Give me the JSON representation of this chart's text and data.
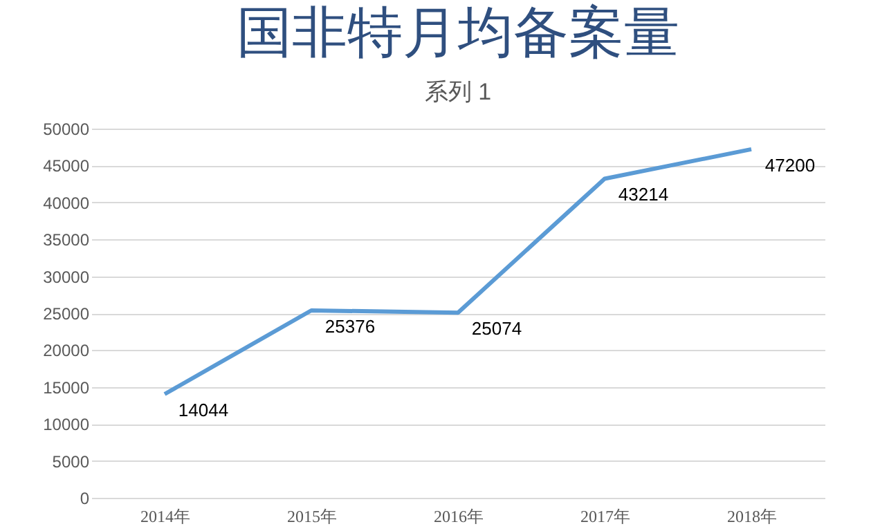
{
  "chart_data": {
    "type": "line",
    "title": "国非特月均备案量",
    "subtitle": "系列 1",
    "categories": [
      "2014年",
      "2015年",
      "2016年",
      "2017年",
      "2018年"
    ],
    "values": [
      14044,
      25376,
      25074,
      43214,
      47200
    ],
    "color": "#5b9bd5",
    "ylim": [
      0,
      50000
    ],
    "yticks": [
      0,
      5000,
      10000,
      15000,
      20000,
      25000,
      30000,
      35000,
      40000,
      45000,
      50000
    ],
    "grid": "y",
    "data_labels": true
  }
}
